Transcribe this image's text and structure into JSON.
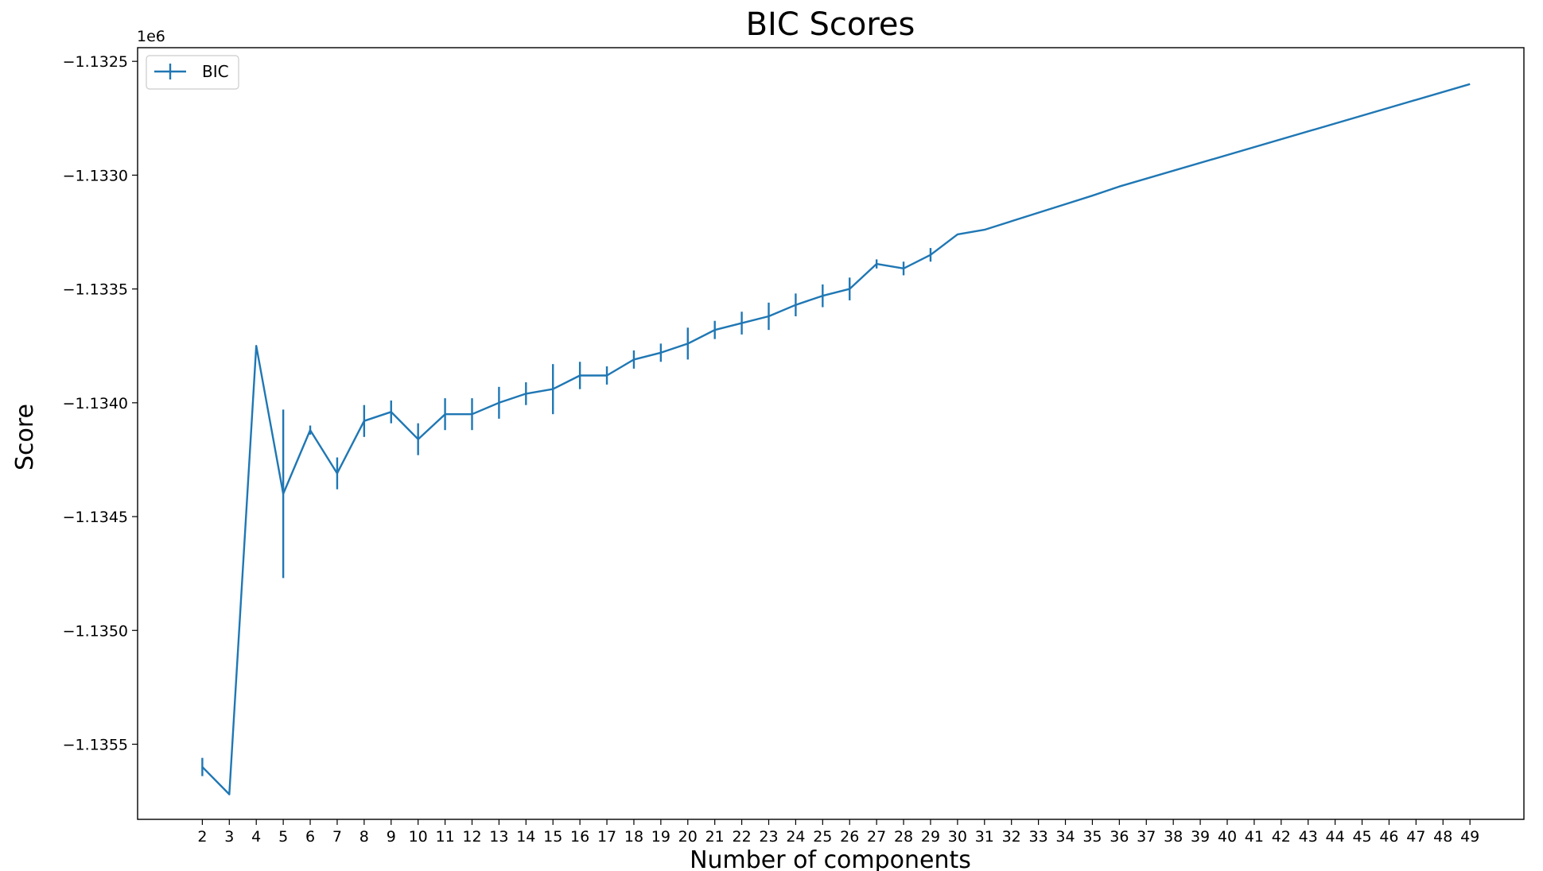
{
  "chart_data": {
    "type": "line",
    "title": "BIC Scores",
    "xlabel": "Number of components",
    "ylabel": "Score",
    "y_offset_label": "1e6",
    "y_ticks": [
      -1.1355,
      -1.135,
      -1.1345,
      -1.134,
      -1.1335,
      -1.133,
      -1.1325
    ],
    "y_tick_labels": [
      "−1.1355",
      "−1.1350",
      "−1.1345",
      "−1.1340",
      "−1.1335",
      "−1.1330",
      "−1.1325"
    ],
    "x_ticks": [
      2,
      3,
      4,
      5,
      6,
      7,
      8,
      9,
      10,
      11,
      12,
      13,
      14,
      15,
      16,
      17,
      18,
      19,
      20,
      21,
      22,
      23,
      24,
      25,
      26,
      27,
      28,
      29,
      30,
      31,
      32,
      33,
      34,
      35,
      36,
      37,
      38,
      39,
      40,
      41,
      42,
      43,
      44,
      45,
      46,
      47,
      48,
      49
    ],
    "xlim": [
      -0.4,
      51.0
    ],
    "ylim": [
      -1.13583,
      -1.13244
    ],
    "grid": false,
    "legend_position": "top-left",
    "series": [
      {
        "name": "BIC",
        "color": "#1f77b4",
        "x": [
          2,
          3,
          4,
          5,
          6,
          7,
          8,
          9,
          10,
          11,
          12,
          13,
          14,
          15,
          16,
          17,
          18,
          19,
          20,
          21,
          22,
          23,
          24,
          25,
          26,
          27,
          28,
          29,
          30,
          31,
          35,
          36,
          49
        ],
        "y": [
          -1.1356,
          -1.13572,
          -1.13375,
          -1.1344,
          -1.13412,
          -1.13431,
          -1.13408,
          -1.13404,
          -1.13416,
          -1.13405,
          -1.13405,
          -1.134,
          -1.13396,
          -1.13394,
          -1.13388,
          -1.13388,
          -1.13381,
          -1.13378,
          -1.13374,
          -1.13368,
          -1.13365,
          -1.13362,
          -1.13357,
          -1.13353,
          -1.1335,
          -1.13339,
          -1.13341,
          -1.13335,
          -1.13326,
          -1.13324,
          -1.13309,
          -1.13305,
          -1.1326
        ],
        "yerr": [
          4e-05,
          0.0,
          0.0,
          0.00037,
          2e-05,
          7e-05,
          7e-05,
          5e-05,
          7e-05,
          7e-05,
          7e-05,
          7e-05,
          5e-05,
          0.00011,
          6e-05,
          4e-05,
          4e-05,
          4e-05,
          7e-05,
          4e-05,
          5e-05,
          6e-05,
          5e-05,
          5e-05,
          5e-05,
          2e-05,
          3e-05,
          3e-05,
          0.0,
          0.0,
          0.0,
          0.0,
          0.0
        ]
      }
    ]
  }
}
